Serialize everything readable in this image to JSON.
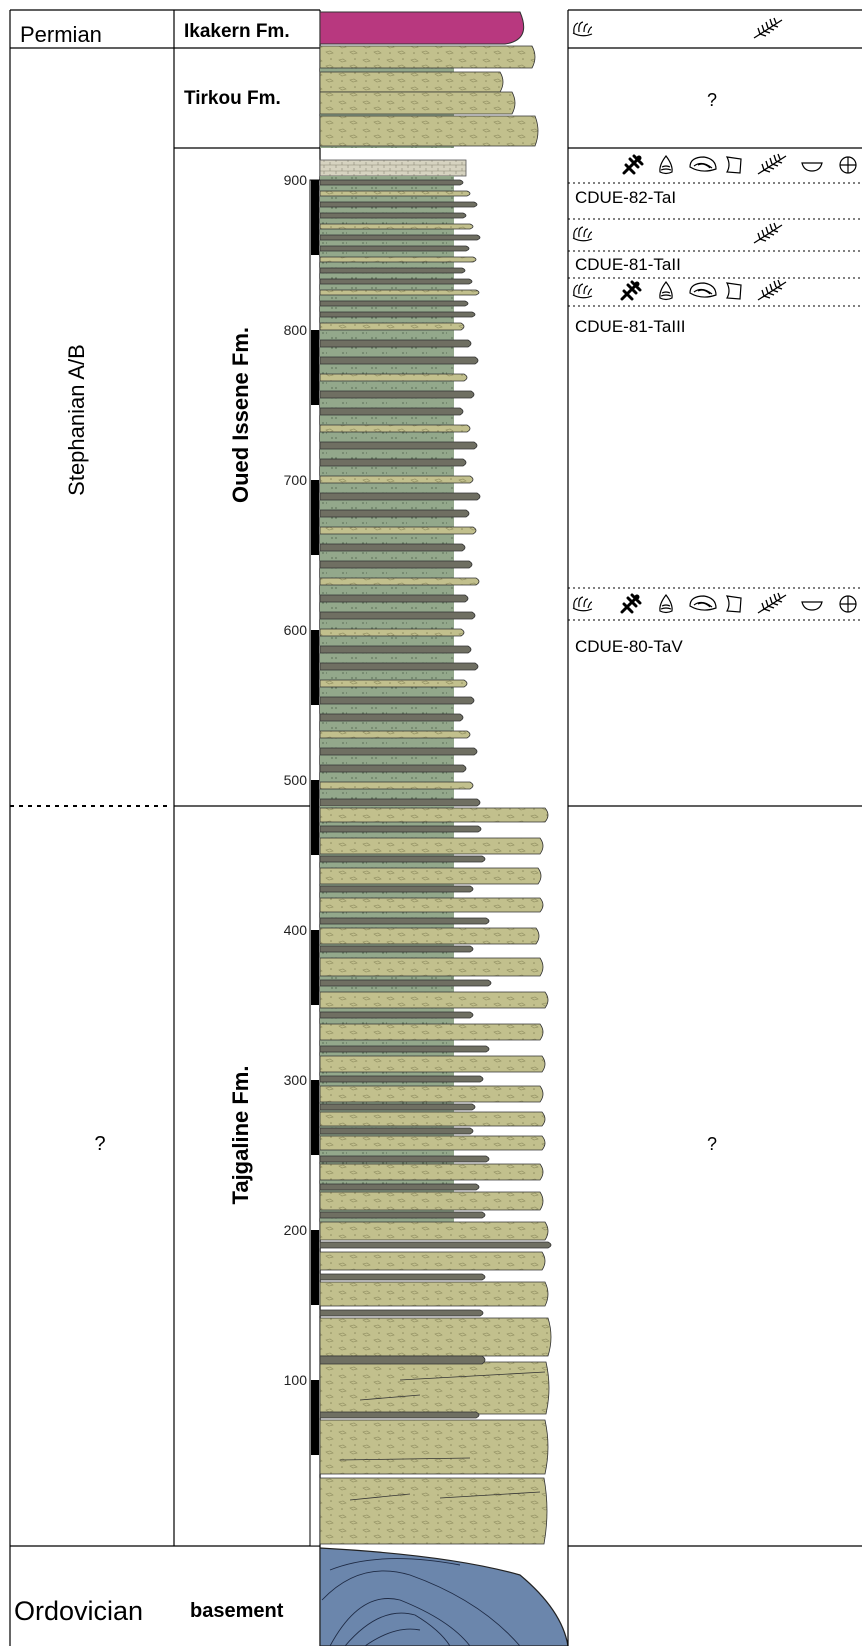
{
  "periods": {
    "permian": "Permian",
    "stephanian": "Stephanian A/B",
    "lower_unknown": "?",
    "ordovician": "Ordovician"
  },
  "formations": {
    "ikakern": "Ikakern Fm.",
    "tirkou": "Tirkou Fm.",
    "oued_issene": "Oued Issene Fm.",
    "tajgaline": "Tajgaline Fm.",
    "basement": "basement"
  },
  "depth_ticks": [
    "900",
    "800",
    "700",
    "600",
    "500",
    "400",
    "300",
    "200",
    "100"
  ],
  "fossil_panel": {
    "tirkou_unknown": "?",
    "tajgaline_unknown": "?",
    "sites": [
      "CDUE-82-TaI",
      "CDUE-81-TaII",
      "CDUE-81-TaIII",
      "CDUE-80-TaV"
    ]
  },
  "fossil_icons": {
    "ikakern": [
      "footprint-icon",
      "plant-frond-icon"
    ],
    "CDUE-82-TaI": [
      "insect-icon",
      "gastropod-icon",
      "bivalve-icon",
      "fish-scale-icon",
      "plant-frond-icon",
      "ostracod-icon",
      "spore-icon"
    ],
    "CDUE-81-TaII": [
      "footprint-icon",
      "plant-frond-icon"
    ],
    "CDUE-81-TaIII": [
      "footprint-icon",
      "insect-icon",
      "gastropod-icon",
      "bivalve-icon",
      "fish-scale-icon",
      "plant-frond-icon"
    ],
    "CDUE-80-TaV": [
      "footprint-icon",
      "insect-icon",
      "gastropod-icon",
      "bivalve-icon",
      "fish-scale-icon",
      "plant-frond-icon",
      "ostracod-icon",
      "spore-icon"
    ]
  },
  "colors": {
    "sandstone": "#c2c08d",
    "mudstone": "#93a88b",
    "shale_bed": "#6f6f62",
    "limestone": "#c9c6b3",
    "ikakern": "#b8387f",
    "basement": "#6b86ac"
  }
}
